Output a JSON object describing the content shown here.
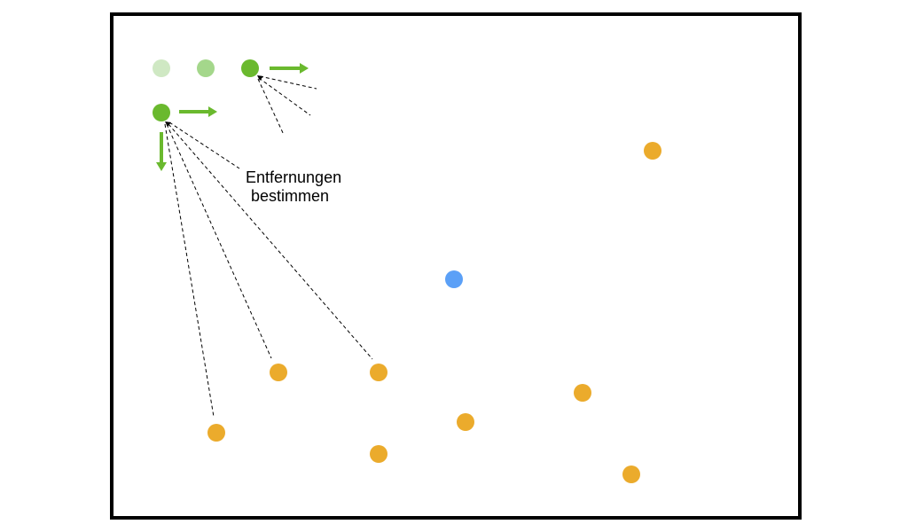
{
  "annotation": {
    "line1": "Entfernungen",
    "line2": "bestimmen"
  },
  "colors": {
    "frame": "#000000",
    "agent_active": "#6ab92e",
    "agent_trail_1": "#a4d78b",
    "agent_trail_2": "#cfe8c3",
    "arrow": "#6ab92e",
    "target_point": "#ebab2c",
    "center_point": "#5ba0f7",
    "dashed_line": "#000000"
  },
  "icons": {
    "arrow_right": "arrow-right-icon",
    "arrow_down": "arrow-down-icon"
  }
}
